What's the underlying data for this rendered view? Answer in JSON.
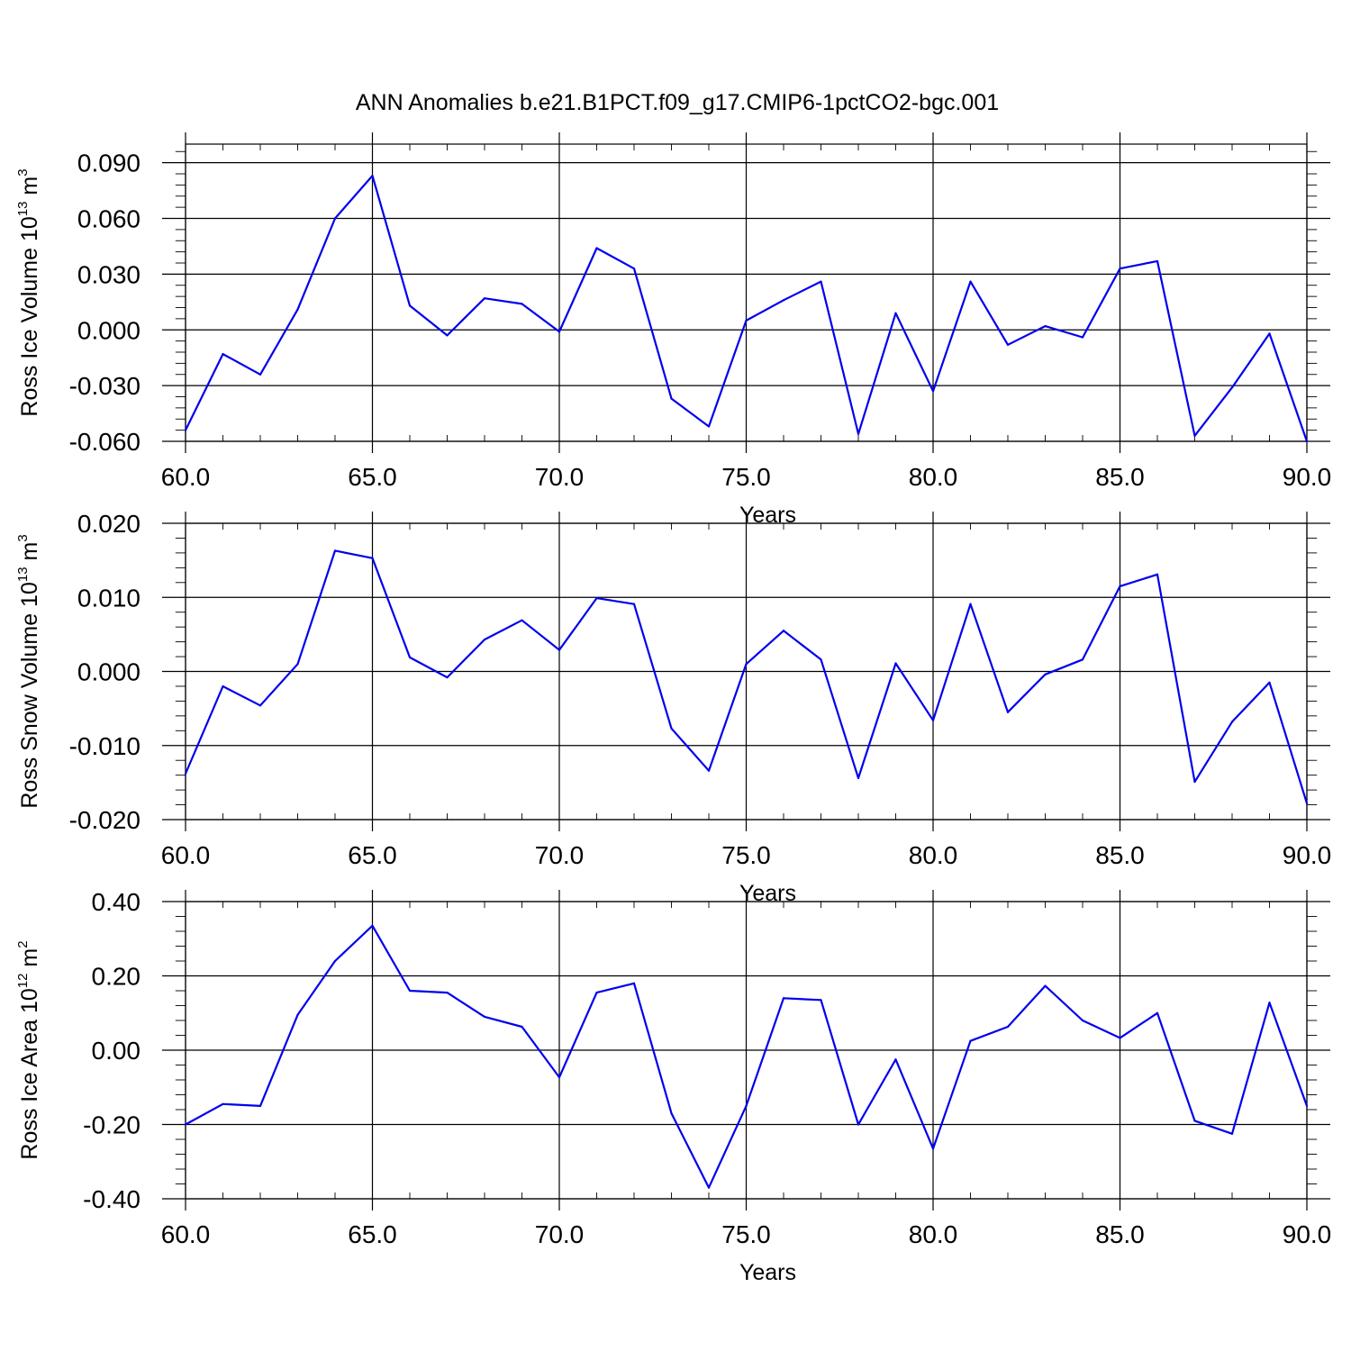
{
  "title": "ANN Anomalies b.e21.B1PCT.f09_g17.CMIP6-1pctCO2-bgc.001",
  "series_color": "#0000ee",
  "chart_data": [
    {
      "type": "line",
      "xlabel": "Years",
      "ylabel": {
        "text": "Ross Ice Volume 10",
        "sup": "13",
        "unit": " m",
        "unit_sup": "3"
      },
      "xlim": [
        60,
        90
      ],
      "ylim": [
        -0.06,
        0.1
      ],
      "x_ticks": [
        "60.0",
        "65.0",
        "70.0",
        "75.0",
        "80.0",
        "85.0",
        "90.0"
      ],
      "y_ticks": [
        "-0.060",
        "-0.030",
        "0.000",
        "0.030",
        "0.060",
        "0.090"
      ],
      "grid": "vertical dashed",
      "x": [
        60,
        61,
        62,
        63,
        64,
        65,
        66,
        67,
        68,
        69,
        70,
        71,
        72,
        73,
        74,
        75,
        76,
        77,
        78,
        79,
        80,
        81,
        82,
        83,
        84,
        85,
        86,
        87,
        88,
        89,
        90
      ],
      "values": [
        -0.054,
        -0.013,
        -0.024,
        0.011,
        0.06,
        0.083,
        0.013,
        -0.003,
        0.017,
        0.014,
        -0.001,
        0.044,
        0.033,
        -0.037,
        -0.052,
        0.005,
        0.016,
        0.026,
        -0.056,
        0.009,
        -0.033,
        0.026,
        -0.008,
        0.002,
        -0.004,
        0.033,
        0.037,
        -0.057,
        -0.031,
        -0.002,
        -0.06
      ]
    },
    {
      "type": "line",
      "xlabel": "Years",
      "ylabel": {
        "text": "Ross Snow Volume 10",
        "sup": "13",
        "unit": " m",
        "unit_sup": "3"
      },
      "xlim": [
        60,
        90
      ],
      "ylim": [
        -0.02,
        0.02
      ],
      "x_ticks": [
        "60.0",
        "65.0",
        "70.0",
        "75.0",
        "80.0",
        "85.0",
        "90.0"
      ],
      "y_ticks": [
        "-0.020",
        "-0.010",
        "0.000",
        "0.010",
        "0.020"
      ],
      "grid": "vertical dashed",
      "x": [
        60,
        61,
        62,
        63,
        64,
        65,
        66,
        67,
        68,
        69,
        70,
        71,
        72,
        73,
        74,
        75,
        76,
        77,
        78,
        79,
        80,
        81,
        82,
        83,
        84,
        85,
        86,
        87,
        88,
        89,
        90
      ],
      "values": [
        -0.0138,
        -0.002,
        -0.0046,
        0.001,
        0.0163,
        0.0153,
        0.0019,
        -0.0008,
        0.0043,
        0.0069,
        0.0029,
        0.0099,
        0.0091,
        -0.0077,
        -0.0134,
        0.001,
        0.0055,
        0.0016,
        -0.0144,
        0.0011,
        -0.0066,
        0.0091,
        -0.0055,
        -0.0004,
        0.0016,
        0.0115,
        0.0131,
        -0.0149,
        -0.0068,
        -0.0015,
        -0.0178
      ]
    },
    {
      "type": "line",
      "xlabel": "Years",
      "ylabel": {
        "text": "Ross Ice Area 10",
        "sup": "12",
        "unit": " m",
        "unit_sup": "2"
      },
      "xlim": [
        60,
        90
      ],
      "ylim": [
        -0.4,
        0.4
      ],
      "x_ticks": [
        "60.0",
        "65.0",
        "70.0",
        "75.0",
        "80.0",
        "85.0",
        "90.0"
      ],
      "y_ticks": [
        "-0.40",
        "-0.20",
        "0.00",
        "0.20",
        "0.40"
      ],
      "grid": "vertical dashed",
      "x": [
        60,
        61,
        62,
        63,
        64,
        65,
        66,
        67,
        68,
        69,
        70,
        71,
        72,
        73,
        74,
        75,
        76,
        77,
        78,
        79,
        80,
        81,
        82,
        83,
        84,
        85,
        86,
        87,
        88,
        89,
        90
      ],
      "values": [
        -0.2,
        -0.145,
        -0.15,
        0.095,
        0.24,
        0.335,
        0.16,
        0.155,
        0.09,
        0.063,
        -0.073,
        0.155,
        0.18,
        -0.17,
        -0.37,
        -0.15,
        0.14,
        0.135,
        -0.2,
        -0.025,
        -0.265,
        0.025,
        0.063,
        0.173,
        0.08,
        0.033,
        0.1,
        -0.19,
        -0.225,
        0.128,
        -0.15
      ]
    }
  ]
}
